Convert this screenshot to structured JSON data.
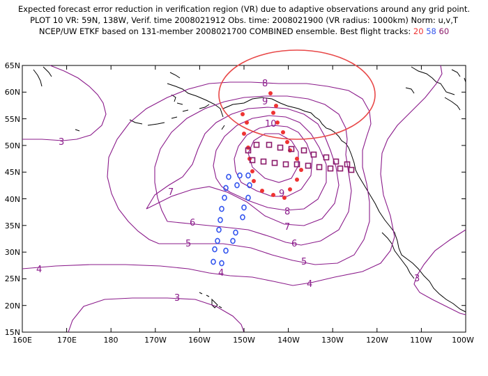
{
  "header": {
    "line1": "Expected forecast error reduction in verification region (VR) due to adaptive observations around any grid point.",
    "line2": "PLOT 10 VR: 59N, 138W, Verif. time 2008021912 Obs. time: 2008021900 (VR radius: 1000km) Norm: u,v,T",
    "line3_prefix": "NCEP/UW ETKF based on 131-member 2008021700 COMBINED ensemble.  Best flight tracks: ",
    "track_20": "20",
    "track_58": "58",
    "track_60": "60"
  },
  "colors": {
    "contour": "#8a1a8a",
    "track_20": "#ee3333",
    "track_58": "#3355ee",
    "track_60": "#8a1a6a",
    "vr_circle": "#e84848"
  },
  "axes": {
    "lat_labels": [
      "65N",
      "60N",
      "55N",
      "50N",
      "45N",
      "40N",
      "35N",
      "30N",
      "25N",
      "20N",
      "15N"
    ],
    "lon_labels": [
      "160E",
      "170E",
      "180",
      "170W",
      "160W",
      "150W",
      "140W",
      "130W",
      "120W",
      "110W",
      "100W"
    ]
  },
  "contour_labels": {
    "c3a": "3",
    "c3b": "3",
    "c3c": "3",
    "c4a": "4",
    "c4b": "4",
    "c4c": "4",
    "c5a": "5",
    "c5b": "5",
    "c6a": "6",
    "c6b": "6",
    "c7a": "7",
    "c7b": "7",
    "c8a": "8",
    "c8b": "8",
    "c9a": "9",
    "c9b": "9",
    "c10": "10"
  }
}
